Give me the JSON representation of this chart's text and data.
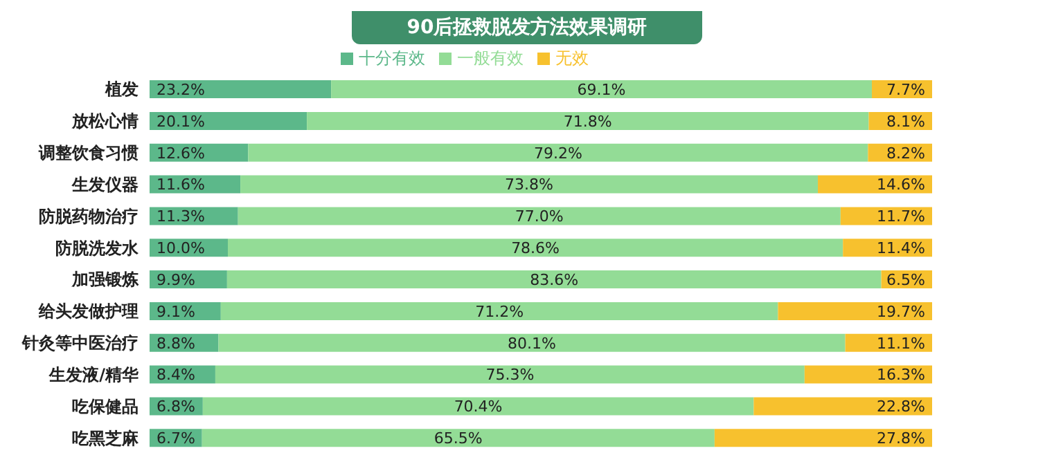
{
  "chart_data": {
    "type": "bar",
    "orientation": "horizontal",
    "stacked": true,
    "title": "90后拯救脱发方法效果调研",
    "categories": [
      "植发",
      "放松心情",
      "调整饮食习惯",
      "生发仪器",
      "防脱药物治疗",
      "防脱洗发水",
      "加强锻炼",
      "给头发做护理",
      "针灸等中医治疗",
      "生发液/精华",
      "吃保健品",
      "吃黑芝麻"
    ],
    "series": [
      {
        "name": "十分有效",
        "color": "#5cb88a",
        "values": [
          23.2,
          20.1,
          12.6,
          11.6,
          11.3,
          10.0,
          9.9,
          9.1,
          8.8,
          8.4,
          6.8,
          6.7
        ],
        "value_labels": [
          "23.2%",
          "20.1%",
          "12.6%",
          "11.6%",
          "11.3%",
          "10.0%",
          "9.9%",
          "9.1%",
          "8.8%",
          "8.4%",
          "6.8%",
          "6.7%"
        ]
      },
      {
        "name": "一般有效",
        "color": "#93dc96",
        "values": [
          69.1,
          71.8,
          79.2,
          73.8,
          77.0,
          78.6,
          83.6,
          71.2,
          80.1,
          75.3,
          70.4,
          65.5
        ],
        "value_labels": [
          "69.1%",
          "71.8%",
          "79.2%",
          "73.8%",
          "77.0%",
          "78.6%",
          "83.6%",
          "71.2%",
          "80.1%",
          "75.3%",
          "70.4%",
          "65.5%"
        ]
      },
      {
        "name": "无效",
        "color": "#f7c12e",
        "values": [
          7.7,
          8.1,
          8.2,
          14.6,
          11.7,
          11.4,
          6.5,
          19.7,
          11.1,
          16.3,
          22.8,
          27.8
        ],
        "value_labels": [
          "7.7%",
          "8.1%",
          "8.2%",
          "14.6%",
          "11.7%",
          "11.4%",
          "6.5%",
          "19.7%",
          "11.1%",
          "16.3%",
          "22.8%",
          "27.8%"
        ]
      }
    ],
    "legend": "top"
  }
}
